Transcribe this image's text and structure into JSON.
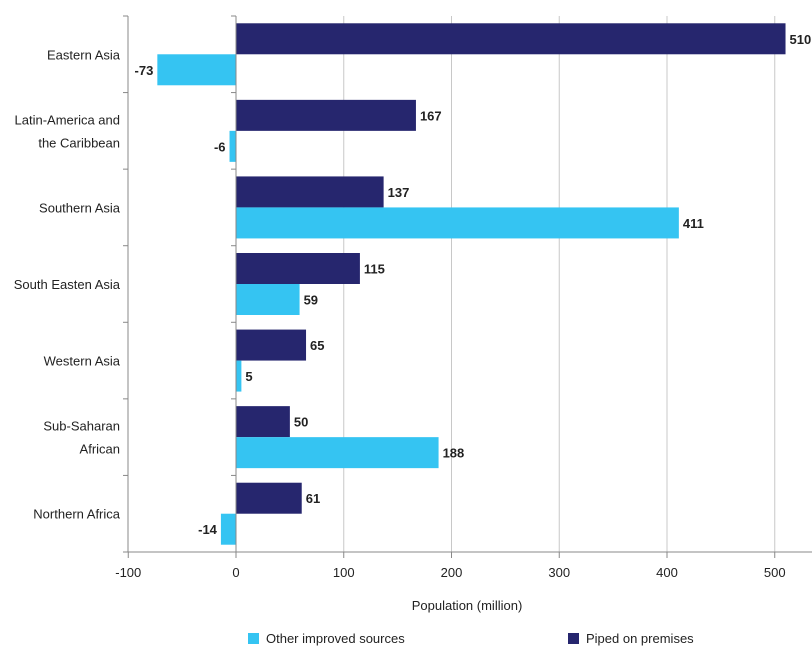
{
  "chart_data": {
    "type": "bar",
    "orientation": "horizontal",
    "categories": [
      [
        "Eastern Asia"
      ],
      [
        "Latin-America and",
        "the Caribbean"
      ],
      [
        "Southern Asia"
      ],
      [
        "South Easten Asia"
      ],
      [
        "Western Asia"
      ],
      [
        "Sub-Saharan",
        "African"
      ],
      [
        "Northern Africa"
      ]
    ],
    "series": [
      {
        "name": "Piped on premises",
        "color": "#26266e",
        "values": [
          510,
          167,
          137,
          115,
          65,
          50,
          61
        ]
      },
      {
        "name": "Other improved sources",
        "color": "#35c4f2",
        "values": [
          -73,
          -6,
          411,
          59,
          5,
          188,
          -14
        ]
      }
    ],
    "xlabel": "Population (million)",
    "xlim": [
      -100,
      520
    ],
    "xticks": [
      -100,
      0,
      100,
      200,
      300,
      400,
      500
    ],
    "grid": "vertical",
    "legend_position": "bottom",
    "legend_order": [
      "Other improved sources",
      "Piped on premises"
    ]
  }
}
